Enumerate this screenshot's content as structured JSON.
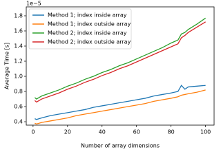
{
  "chart_data": {
    "type": "line",
    "offset_text": "1e−5",
    "xlabel": "Number of array dimensions",
    "ylabel": "Average Time [s]",
    "x": [
      1,
      2,
      5,
      10,
      15,
      20,
      25,
      30,
      35,
      40,
      45,
      50,
      55,
      60,
      65,
      70,
      75,
      80,
      84,
      86,
      88,
      90,
      95,
      100
    ],
    "series": [
      {
        "name": "Method 1; index inside array",
        "color": "#1f77b4",
        "values": [
          0.44,
          0.43,
          0.45,
          0.48,
          0.5,
          0.52,
          0.54,
          0.56,
          0.59,
          0.61,
          0.63,
          0.65,
          0.67,
          0.69,
          0.71,
          0.74,
          0.76,
          0.78,
          0.8,
          0.88,
          0.83,
          0.86,
          0.87,
          0.88
        ]
      },
      {
        "name": "Method 1; index outside array",
        "color": "#ff7f0e",
        "values": [
          0.38,
          0.37,
          0.39,
          0.41,
          0.43,
          0.45,
          0.48,
          0.5,
          0.52,
          0.54,
          0.56,
          0.58,
          0.6,
          0.62,
          0.64,
          0.67,
          0.69,
          0.71,
          0.73,
          0.75,
          0.76,
          0.77,
          0.79,
          0.82
        ]
      },
      {
        "name": "Method 2; index inside array",
        "color": "#2ca02c",
        "values": [
          0.72,
          0.7,
          0.74,
          0.78,
          0.82,
          0.87,
          0.91,
          0.96,
          1.0,
          1.05,
          1.09,
          1.14,
          1.18,
          1.23,
          1.28,
          1.33,
          1.38,
          1.44,
          1.48,
          1.56,
          1.58,
          1.62,
          1.69,
          1.77
        ]
      },
      {
        "name": "Method 2; index outside array",
        "color": "#d62728",
        "values": [
          0.68,
          0.66,
          0.7,
          0.74,
          0.78,
          0.83,
          0.87,
          0.92,
          0.96,
          1.01,
          1.05,
          1.1,
          1.14,
          1.19,
          1.24,
          1.29,
          1.34,
          1.39,
          1.43,
          1.51,
          1.54,
          1.58,
          1.65,
          1.72
        ]
      }
    ],
    "xlim": [
      -3.95,
      104.95
    ],
    "xticks": [
      0,
      20,
      40,
      60,
      80,
      100
    ],
    "ylim": [
      0.355,
      1.918
    ],
    "yticks": [
      0.4,
      0.6,
      0.8,
      {
        "value": 1,
        "label": "1.0"
      },
      1.2,
      1.4,
      1.6,
      1.8
    ],
    "grid": false,
    "legend": "upper-left"
  }
}
